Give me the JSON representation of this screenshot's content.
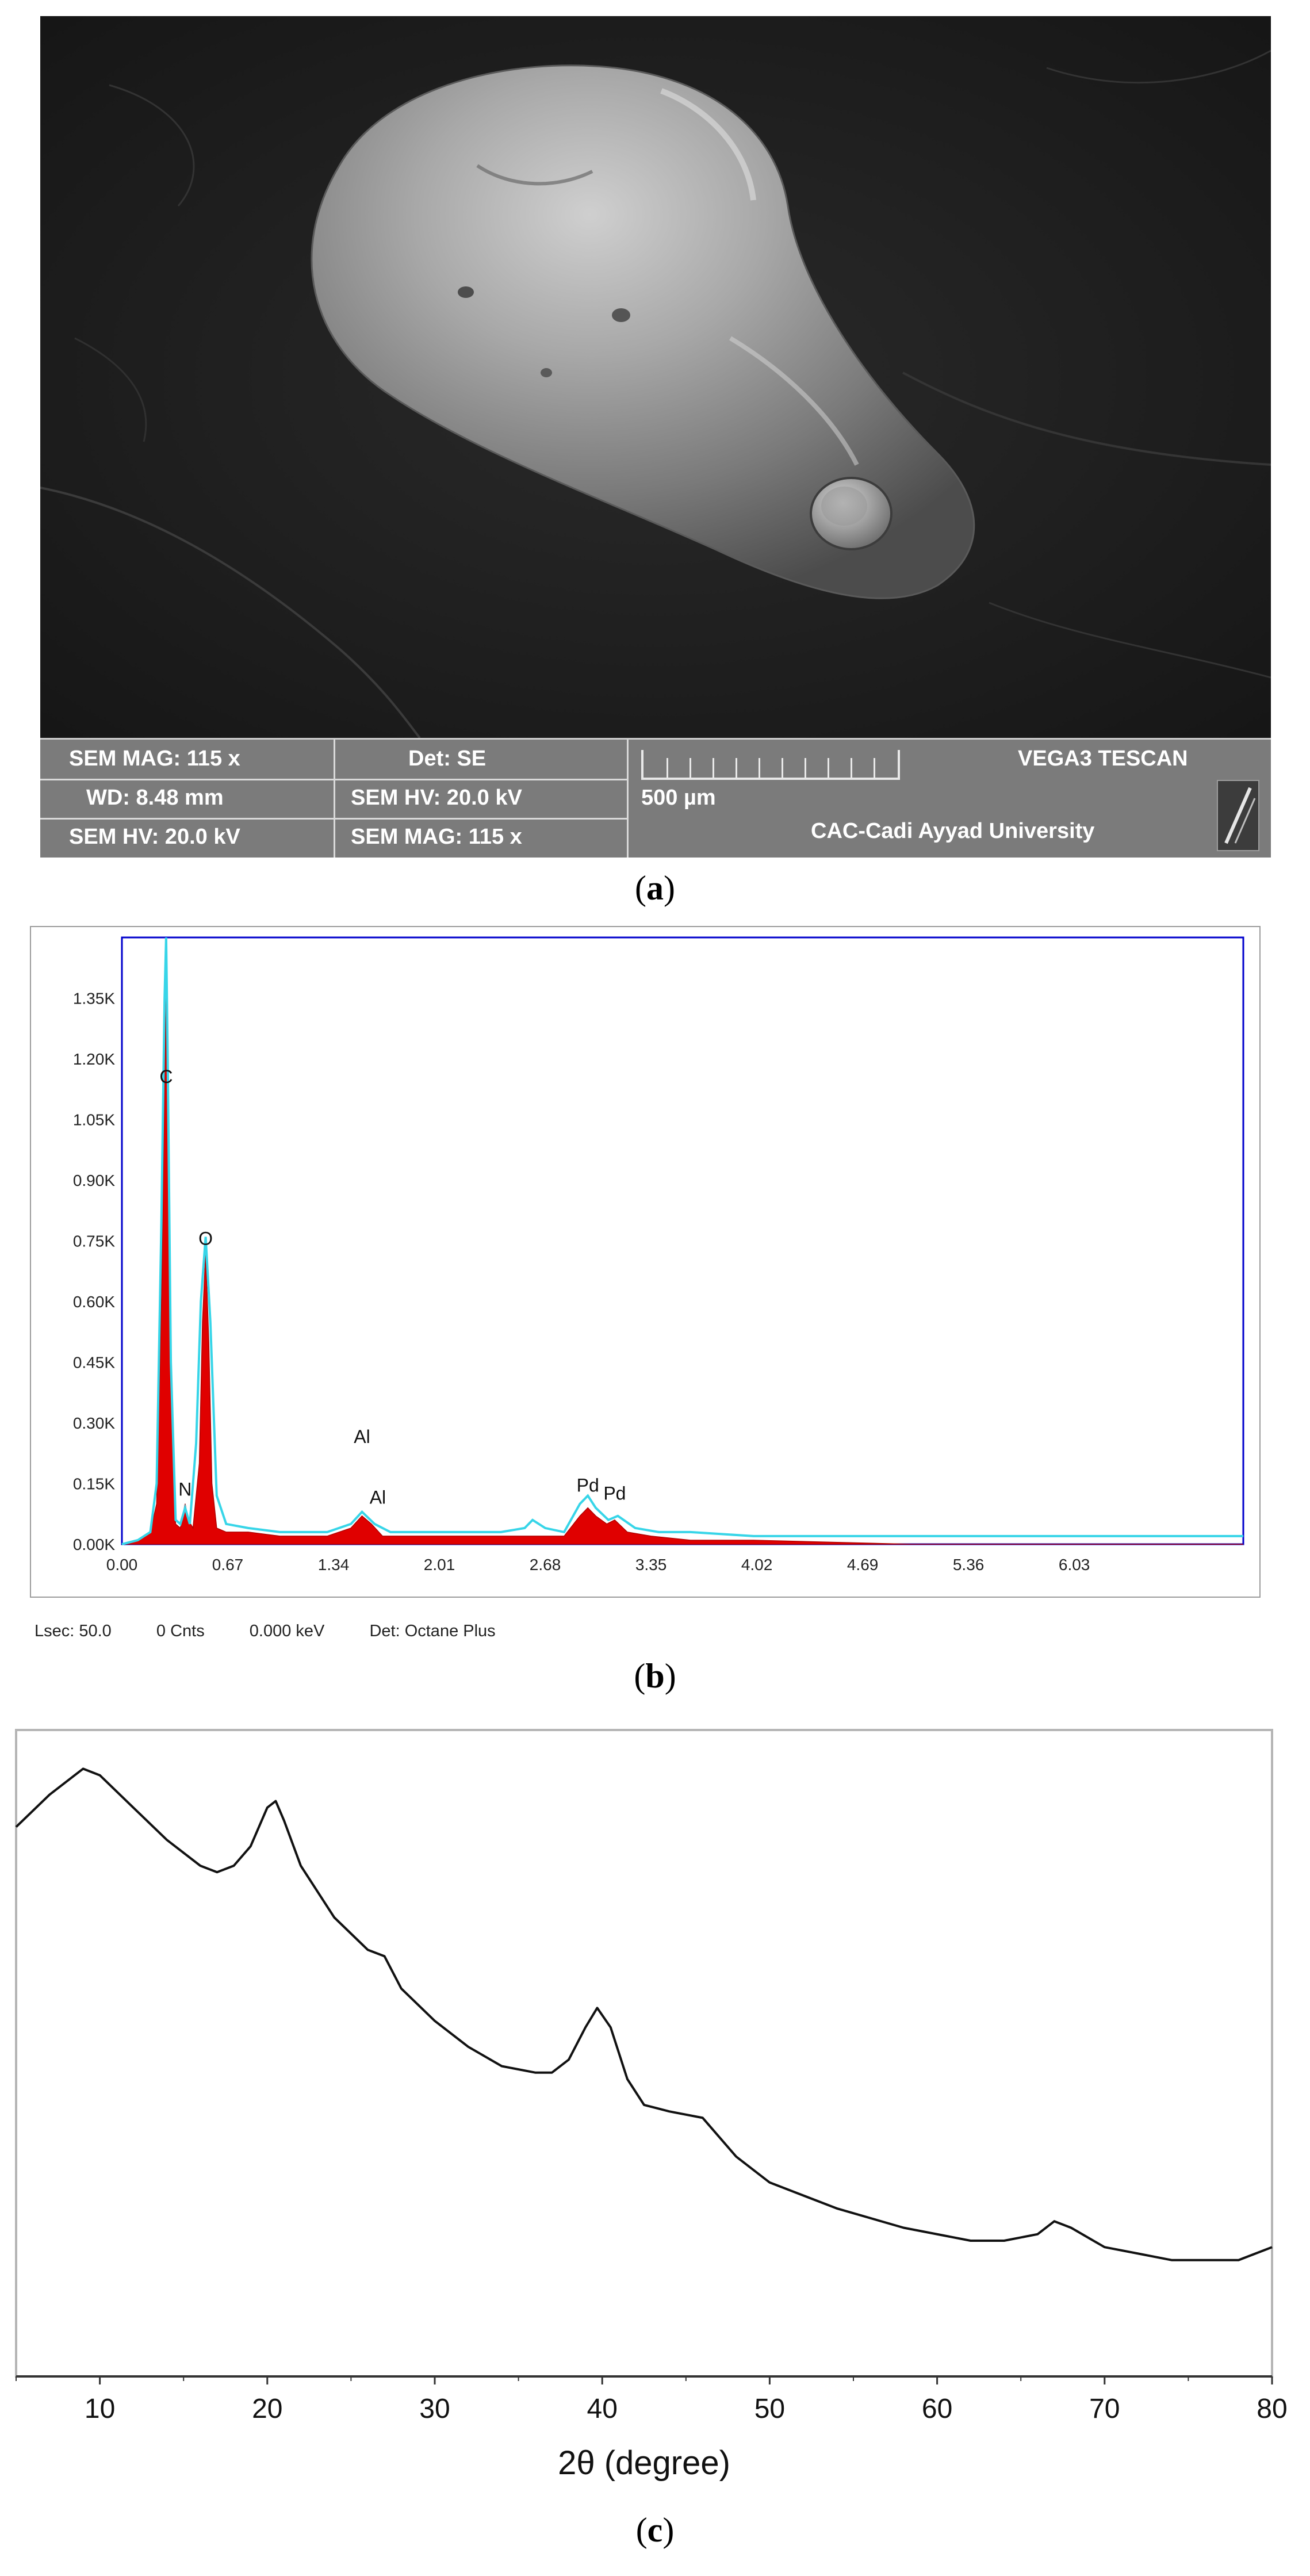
{
  "panel_a": {
    "label_open": "(",
    "label_letter": "a",
    "label_close": ")",
    "databar": {
      "sem_mag_1": "SEM MAG: 115 x",
      "det": "Det: SE",
      "wd": "WD: 8.48 mm",
      "sem_hv_mid": "SEM HV: 20.0 kV",
      "sem_hv_left": "SEM HV: 20.0 kV",
      "sem_mag_2": "SEM MAG: 115 x",
      "scale": "500 µm",
      "vendor": "VEGA3 TESCAN",
      "institution": "CAC-Cadi Ayyad University"
    }
  },
  "panel_b": {
    "label_open": "(",
    "label_letter": "b",
    "label_close": ")",
    "footer": {
      "lsec": "Lsec: 50.0",
      "cnts": "0 Cnts",
      "kev": "0.000 keV",
      "det": "Det: Octane Plus"
    }
  },
  "panel_c": {
    "label_open": "(",
    "label_letter": "c",
    "label_close": ")"
  },
  "colors": {
    "eds_fill": "#e00000",
    "eds_trace": "#37d5e8",
    "eds_axis_box": "#0000cc",
    "xrd_line": "#111111",
    "sem_bar": "#7b7b7b"
  },
  "chart_data": [
    {
      "type": "area",
      "name": "EDS spectrum",
      "title": "",
      "xlabel": "",
      "ylabel": "",
      "xlim": [
        0,
        7.1
      ],
      "ylim": [
        0,
        1.5
      ],
      "x_ticks": [
        "0.00",
        "0.67",
        "1.34",
        "2.01",
        "2.68",
        "3.35",
        "4.02",
        "4.69",
        "5.36",
        "6.03"
      ],
      "x_tick_values": [
        0,
        0.67,
        1.34,
        2.01,
        2.68,
        3.35,
        4.02,
        4.69,
        5.36,
        6.03
      ],
      "y_ticks": [
        "0.00K",
        "0.15K",
        "0.30K",
        "0.45K",
        "0.60K",
        "0.75K",
        "0.90K",
        "1.05K",
        "1.20K",
        "1.35K"
      ],
      "y_tick_values": [
        0,
        0.15,
        0.3,
        0.45,
        0.6,
        0.75,
        0.9,
        1.05,
        1.2,
        1.35
      ],
      "peak_labels": [
        {
          "text": "C",
          "x": 0.28,
          "y": 1.14
        },
        {
          "text": "O",
          "x": 0.53,
          "y": 0.74
        },
        {
          "text": "N",
          "x": 0.4,
          "y": 0.12
        },
        {
          "text": "Al",
          "x": 1.52,
          "y": 0.25
        },
        {
          "text": "Al",
          "x": 1.62,
          "y": 0.1
        },
        {
          "text": "Pd",
          "x": 2.95,
          "y": 0.13
        },
        {
          "text": "Pd",
          "x": 3.12,
          "y": 0.11
        }
      ],
      "series": [
        {
          "style": "filled",
          "x": [
            0.0,
            0.1,
            0.18,
            0.22,
            0.25,
            0.27,
            0.28,
            0.29,
            0.31,
            0.34,
            0.37,
            0.39,
            0.4,
            0.42,
            0.45,
            0.49,
            0.51,
            0.53,
            0.55,
            0.57,
            0.6,
            0.66,
            0.8,
            1.0,
            1.3,
            1.45,
            1.52,
            1.58,
            1.65,
            2.0,
            2.4,
            2.55,
            2.65,
            2.8,
            2.9,
            2.95,
            3.0,
            3.07,
            3.12,
            3.2,
            3.35,
            3.6,
            4.0,
            5.0,
            6.0,
            7.1
          ],
          "y": [
            0.0,
            0.01,
            0.03,
            0.1,
            0.6,
            1.15,
            1.35,
            1.1,
            0.4,
            0.05,
            0.04,
            0.08,
            0.1,
            0.06,
            0.04,
            0.2,
            0.55,
            0.72,
            0.5,
            0.15,
            0.04,
            0.03,
            0.03,
            0.02,
            0.02,
            0.04,
            0.07,
            0.05,
            0.02,
            0.02,
            0.02,
            0.02,
            0.02,
            0.02,
            0.07,
            0.09,
            0.07,
            0.05,
            0.06,
            0.03,
            0.02,
            0.01,
            0.01,
            0.0,
            0.0,
            0.0
          ]
        },
        {
          "style": "trace",
          "x": [
            0.0,
            0.1,
            0.18,
            0.22,
            0.25,
            0.27,
            0.28,
            0.29,
            0.31,
            0.34,
            0.37,
            0.4,
            0.43,
            0.47,
            0.5,
            0.53,
            0.56,
            0.6,
            0.66,
            0.8,
            1.0,
            1.3,
            1.45,
            1.52,
            1.6,
            1.7,
            2.0,
            2.4,
            2.55,
            2.6,
            2.68,
            2.8,
            2.9,
            2.95,
            3.0,
            3.08,
            3.14,
            3.25,
            3.4,
            3.6,
            4.0,
            5.0,
            6.0,
            7.1
          ],
          "y": [
            0.0,
            0.01,
            0.03,
            0.15,
            0.8,
            1.35,
            1.5,
            1.2,
            0.45,
            0.06,
            0.05,
            0.09,
            0.05,
            0.25,
            0.6,
            0.76,
            0.55,
            0.12,
            0.05,
            0.04,
            0.03,
            0.03,
            0.05,
            0.08,
            0.05,
            0.03,
            0.03,
            0.03,
            0.04,
            0.06,
            0.04,
            0.03,
            0.1,
            0.12,
            0.09,
            0.06,
            0.07,
            0.04,
            0.03,
            0.03,
            0.02,
            0.02,
            0.02,
            0.02
          ]
        }
      ]
    },
    {
      "type": "line",
      "name": "XRD pattern",
      "title": "",
      "xlabel": "2θ (degree)",
      "ylabel": "",
      "xlim": [
        5,
        80
      ],
      "ylim": [
        0,
        100
      ],
      "x_ticks": [
        "10",
        "20",
        "30",
        "40",
        "50",
        "60",
        "70",
        "80"
      ],
      "x_tick_values": [
        10,
        20,
        30,
        40,
        50,
        60,
        70,
        80
      ],
      "series": [
        {
          "x": [
            5,
            7,
            9,
            10,
            12,
            14,
            16,
            17,
            18,
            19,
            20,
            20.5,
            21,
            22,
            24,
            26,
            27,
            28,
            30,
            32,
            34,
            36,
            37,
            38,
            39,
            39.7,
            40.5,
            41.5,
            42.5,
            44,
            46,
            48,
            50,
            54,
            58,
            62,
            64,
            66,
            67,
            68,
            70,
            72,
            74,
            76,
            78,
            80
          ],
          "y": [
            85,
            90,
            94,
            93,
            88,
            83,
            79,
            78,
            79,
            82,
            88,
            89,
            86,
            79,
            71,
            66,
            65,
            60,
            55,
            51,
            48,
            47,
            47,
            49,
            54,
            57,
            54,
            46,
            42,
            41,
            40,
            34,
            30,
            26,
            23,
            21,
            21,
            22,
            24,
            23,
            20,
            19,
            18,
            18,
            18,
            20
          ]
        }
      ]
    }
  ]
}
